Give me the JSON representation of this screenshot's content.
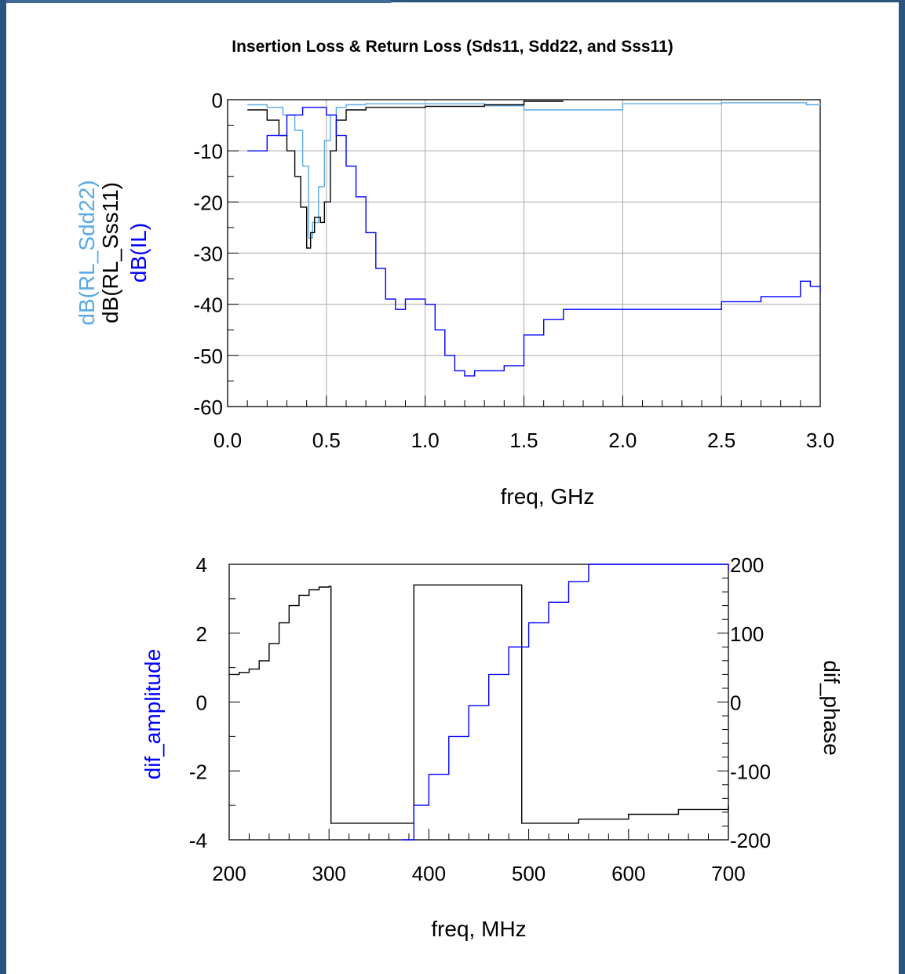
{
  "title": "Insertion Loss & Return Loss (Sds11, Sdd22, and Sss11)",
  "colors": {
    "light_blue": "#5aa9e6",
    "black": "#000000",
    "blue": "#0000ff",
    "frame": "#2a5580"
  },
  "chart_data": [
    {
      "type": "line",
      "title": "Insertion Loss & Return Loss (Sds11, Sdd22, and Sss11)",
      "xlabel": "freq, GHz",
      "ylabels": [
        "dB(RL_Sdd22)",
        "dB(RL_Sss11)",
        "dB(IL)"
      ],
      "xlim": [
        0.0,
        3.0
      ],
      "ylim": [
        -60,
        0
      ],
      "xticks": [
        "0.0",
        "0.5",
        "1.0",
        "1.5",
        "2.0",
        "2.5",
        "3.0"
      ],
      "yticks": [
        "0",
        "-10",
        "-20",
        "-30",
        "-40",
        "-50",
        "-60"
      ],
      "grid": true,
      "series": [
        {
          "name": "dB(RL_Sdd22)",
          "color": "#5aa9e6",
          "x": [
            0.1,
            0.2,
            0.28,
            0.34,
            0.38,
            0.41,
            0.43,
            0.46,
            0.49,
            0.52,
            0.55,
            0.6,
            0.7,
            1.0,
            1.3,
            1.5,
            1.7,
            2.0,
            2.5,
            2.9,
            2.93,
            3.0
          ],
          "y": [
            -1,
            -1.5,
            -3,
            -6,
            -13,
            -27,
            -24,
            -17,
            -8,
            -3,
            -1.5,
            -1,
            -0.8,
            -0.8,
            -1.2,
            -2,
            -2,
            -0.8,
            -0.6,
            -0.6,
            -1,
            -0.7
          ]
        },
        {
          "name": "dB(RL_Sss11)",
          "color": "#000000",
          "x": [
            0.1,
            0.2,
            0.26,
            0.3,
            0.34,
            0.37,
            0.4,
            0.42,
            0.44,
            0.47,
            0.49,
            0.52,
            0.55,
            0.6,
            0.7,
            1.0,
            1.3,
            1.5,
            1.7
          ],
          "y": [
            -2,
            -4,
            -7,
            -10,
            -15,
            -21,
            -29,
            -26,
            -23,
            -24,
            -20,
            -10,
            -4,
            -2,
            -1.5,
            -1.3,
            -1,
            -0.3,
            -0.3
          ]
        },
        {
          "name": "dB(IL)",
          "color": "#0000ff",
          "x": [
            0.1,
            0.2,
            0.3,
            0.38,
            0.45,
            0.5,
            0.55,
            0.6,
            0.65,
            0.7,
            0.75,
            0.8,
            0.85,
            0.9,
            0.95,
            1.0,
            1.05,
            1.1,
            1.15,
            1.2,
            1.25,
            1.3,
            1.35,
            1.4,
            1.5,
            1.6,
            1.7,
            2.0,
            2.2,
            2.5,
            2.7,
            2.9,
            2.95,
            3.0
          ],
          "y": [
            -10,
            -7,
            -3,
            -1.5,
            -1.5,
            -3,
            -7,
            -13,
            -19,
            -26,
            -33,
            -39,
            -41,
            -39,
            -39,
            -40,
            -45,
            -50,
            -53,
            -54,
            -53,
            -53,
            -53,
            -52,
            -46,
            -43,
            -41,
            -41,
            -41,
            -39.5,
            -38.5,
            -35.5,
            -36.5,
            -37.5
          ]
        }
      ]
    },
    {
      "type": "line",
      "xlabel": "freq, MHz",
      "ylabel_left": "dif_amplitude",
      "ylabel_right": "dif_phase",
      "xlim": [
        200,
        700
      ],
      "ylim_left": [
        -4,
        4
      ],
      "ylim_right": [
        -200,
        200
      ],
      "xticks": [
        "200",
        "300",
        "400",
        "500",
        "600",
        "700"
      ],
      "yticks_left": [
        "4",
        "2",
        "0",
        "-2",
        "-4"
      ],
      "yticks_right": [
        "200",
        "100",
        "0",
        "-100",
        "-200"
      ],
      "grid": false,
      "series": [
        {
          "name": "dif_phase",
          "axis": "right",
          "color": "#000000",
          "x": [
            200,
            210,
            220,
            230,
            240,
            250,
            260,
            270,
            280,
            290,
            300,
            302,
            385,
            385,
            493,
            493,
            550,
            600,
            650,
            700
          ],
          "y": [
            40,
            43,
            48,
            60,
            85,
            115,
            140,
            155,
            163,
            167,
            168,
            -176,
            -176,
            170,
            170,
            -176,
            -170,
            -163,
            -156,
            -150
          ]
        },
        {
          "name": "dif_amplitude",
          "axis": "left",
          "color": "#0000ff",
          "x": [
            373,
            385,
            400,
            420,
            440,
            460,
            480,
            500,
            520,
            540,
            560,
            600,
            650,
            695,
            700
          ],
          "y": [
            -4,
            -3,
            -2.1,
            -1,
            -0.1,
            0.8,
            1.6,
            2.3,
            2.9,
            3.5,
            4,
            4,
            4,
            4,
            3.8
          ]
        }
      ]
    }
  ]
}
